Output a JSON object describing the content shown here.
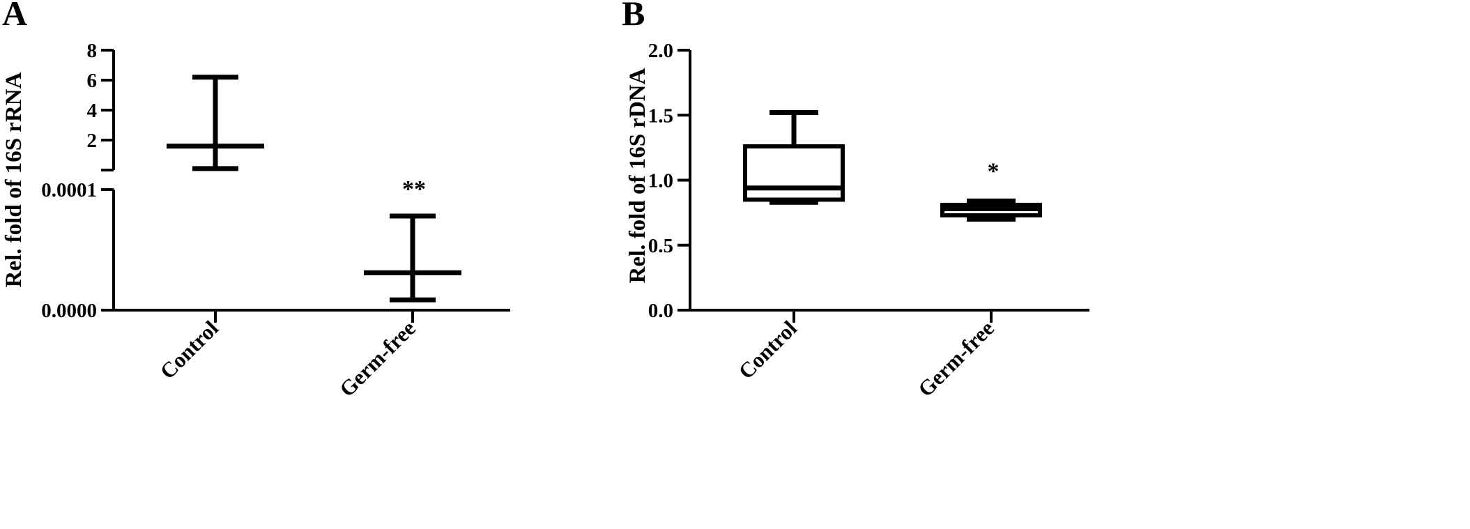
{
  "chart_data": [
    {
      "panel": "A",
      "type": "error-bar",
      "ylabel": "Rel. fold of 16S rRNA",
      "categories": [
        "Control",
        "Germ-free"
      ],
      "axis_upper": {
        "ylim": [
          0,
          8
        ],
        "ticks": [
          "2",
          "4",
          "6",
          "8"
        ]
      },
      "axis_lower": {
        "ylim": [
          0,
          0.0001
        ],
        "ticks": [
          "0.0000",
          "0.0001"
        ]
      },
      "groups": [
        {
          "category": "Control",
          "segment": "upper",
          "center": 1.6,
          "upper": 6.2,
          "lower": 0.1,
          "significance": ""
        },
        {
          "category": "Germ-free",
          "segment": "lower",
          "center": 3.1e-05,
          "upper": 7.8e-05,
          "lower": 8.5e-06,
          "significance": "**"
        }
      ]
    },
    {
      "panel": "B",
      "type": "box",
      "ylabel": "Rel. fold of 16S rDNA",
      "categories": [
        "Control",
        "Germ-free"
      ],
      "ylim": [
        0,
        2
      ],
      "ticks": [
        "0.0",
        "0.5",
        "1.0",
        "1.5",
        "2.0"
      ],
      "groups": [
        {
          "category": "Control",
          "min": 0.83,
          "q1": 0.85,
          "median": 0.94,
          "q3": 1.26,
          "max": 1.52,
          "significance": ""
        },
        {
          "category": "Germ-free",
          "min": 0.7,
          "q1": 0.73,
          "median": 0.78,
          "q3": 0.81,
          "max": 0.84,
          "significance": "*"
        }
      ]
    }
  ]
}
